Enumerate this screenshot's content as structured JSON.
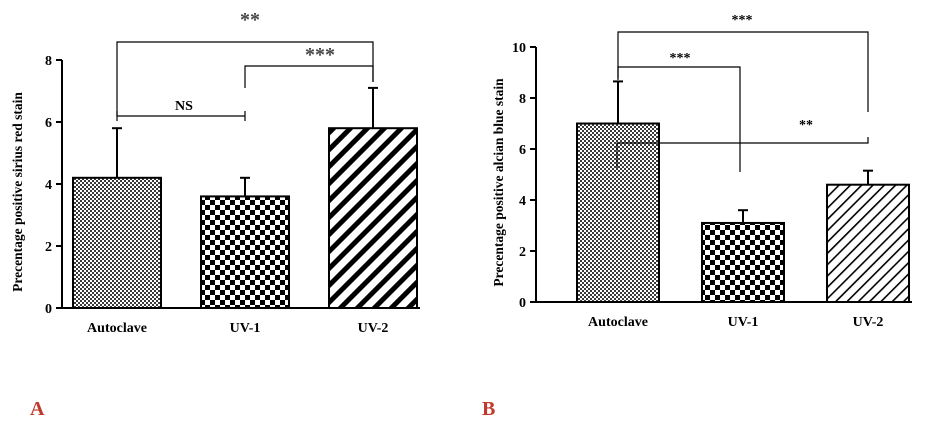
{
  "panel_labels": [
    "A",
    "B"
  ],
  "colors": {
    "ink": "#000000",
    "panel_label": "#c0392b",
    "background": "#ffffff"
  },
  "chart_data": [
    {
      "type": "bar",
      "panel": "A",
      "ylabel": "Precentage positive sirius red stain",
      "xlabel": "",
      "categories": [
        "Autoclave",
        "UV-1",
        "UV-2"
      ],
      "values": [
        4.2,
        3.6,
        5.8
      ],
      "errors": [
        1.6,
        0.6,
        1.3
      ],
      "patterns": [
        "fine-check",
        "checker",
        "diagonal-thick"
      ],
      "ylim": [
        0,
        8
      ],
      "yticks": [
        "0",
        "2",
        "4",
        "6",
        "8"
      ],
      "grid": false,
      "legend": "none",
      "significance": [
        {
          "label": "**",
          "from": 0,
          "to": 2
        },
        {
          "label": "NS",
          "from": 0,
          "to": 1
        },
        {
          "label": "***",
          "from": 1,
          "to": 2
        }
      ]
    },
    {
      "type": "bar",
      "panel": "B",
      "ylabel": "Precentage positive alcian blue stain",
      "xlabel": "",
      "categories": [
        "Autoclave",
        "UV-1",
        "UV-2"
      ],
      "values": [
        7.0,
        3.1,
        4.6
      ],
      "errors": [
        1.65,
        0.5,
        0.55
      ],
      "patterns": [
        "fine-check",
        "checker",
        "diagonal-thin"
      ],
      "ylim": [
        0,
        10
      ],
      "yticks": [
        "0",
        "2",
        "4",
        "6",
        "8",
        "10"
      ],
      "grid": false,
      "legend": "none",
      "significance": [
        {
          "label": "***",
          "from": 0,
          "to": 2
        },
        {
          "label": "***",
          "from": 0,
          "to": 1
        },
        {
          "label": "**",
          "from": 1,
          "to": 2
        }
      ]
    }
  ]
}
